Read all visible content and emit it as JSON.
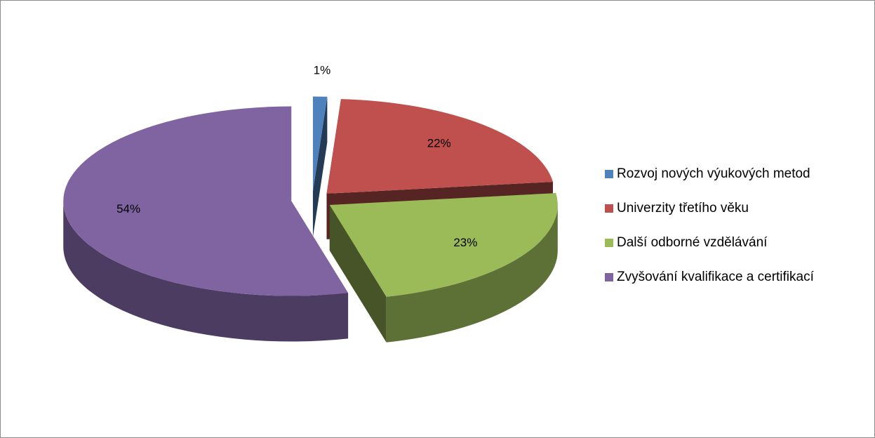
{
  "chart_data": {
    "type": "pie3d",
    "categories": [
      "Rozvoj nových výukových metod",
      "Univerzity třetího věku",
      "Další odborné vzdělávání",
      "Zvyšování kvalifikace a certifikací"
    ],
    "values": [
      1,
      22,
      23,
      54
    ],
    "value_labels": [
      "1%",
      "22%",
      "23%",
      "54%"
    ],
    "colors": [
      "#4f81bd",
      "#c0504d",
      "#9bbb59",
      "#8064a2"
    ],
    "legend": "right"
  }
}
